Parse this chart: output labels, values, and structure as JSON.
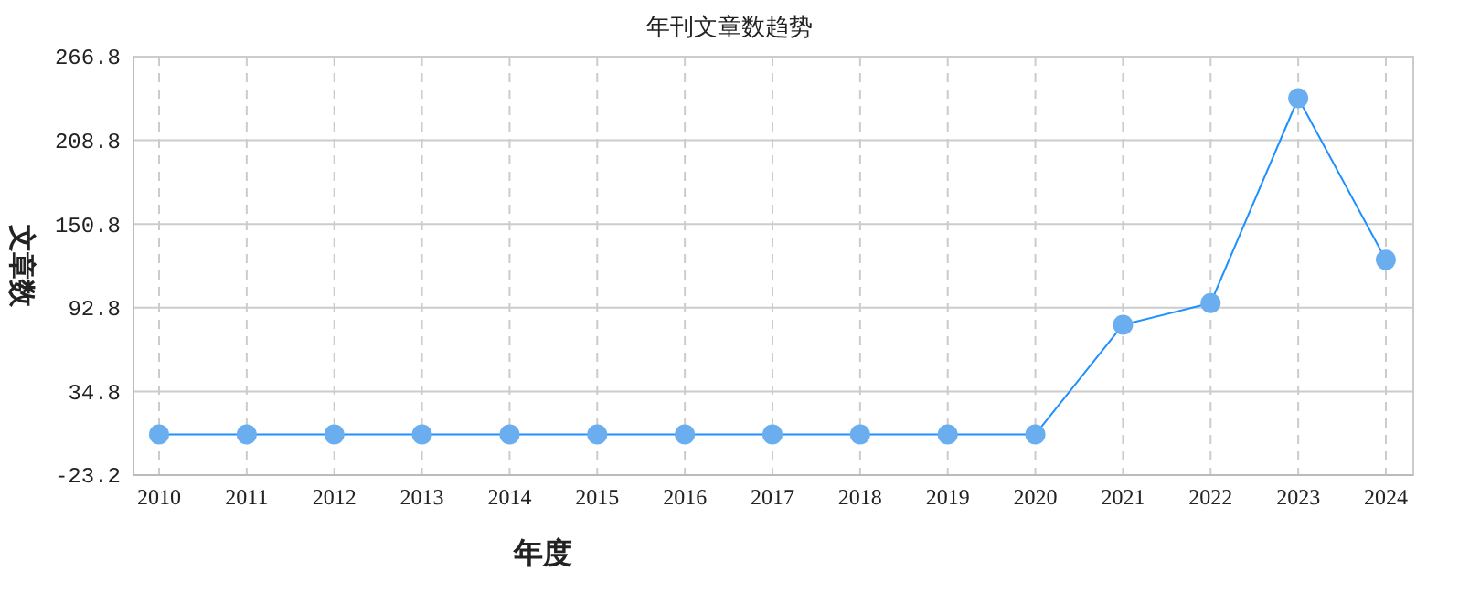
{
  "chart_data": {
    "type": "line",
    "title": "年刊文章数趋势",
    "xlabel": "年度",
    "ylabel": "文章数",
    "categories": [
      "2010",
      "2011",
      "2012",
      "2013",
      "2014",
      "2015",
      "2016",
      "2017",
      "2018",
      "2019",
      "2020",
      "2021",
      "2022",
      "2023",
      "2024"
    ],
    "series": [
      {
        "color": "#1e90ff",
        "values": [
          5,
          5,
          5,
          5,
          5,
          5,
          5,
          5,
          5,
          5,
          5,
          81,
          96,
          238,
          126
        ]
      }
    ],
    "ylim": [
      -23.2,
      266.8
    ],
    "yticks": [
      {
        "value": -23.2,
        "label": "-23.2"
      },
      {
        "value": 34.8,
        "label": "34.8"
      },
      {
        "value": 92.8,
        "label": "92.8"
      },
      {
        "value": 150.8,
        "label": "150.8"
      },
      {
        "value": 208.8,
        "label": "208.8"
      },
      {
        "value": 266.8,
        "label": "266.8"
      }
    ],
    "grid": true,
    "marker": "circle",
    "line_style": "solid"
  }
}
